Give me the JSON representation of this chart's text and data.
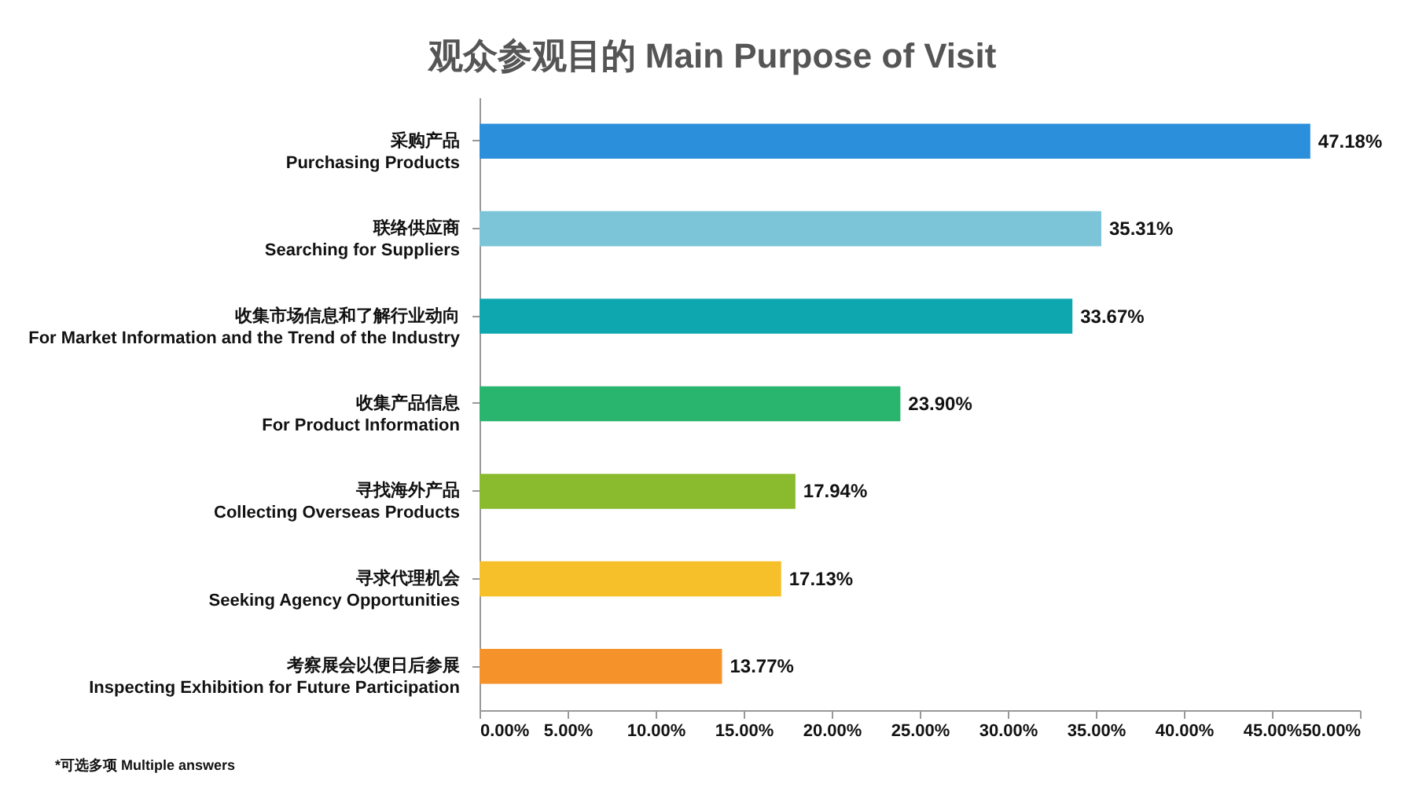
{
  "chart_data": {
    "type": "bar",
    "orientation": "horizontal",
    "title": "观众参观目的 Main Purpose of Visit",
    "categories": [
      "采购产品\nPurchasing Products",
      "联络供应商\nSearching for Suppliers",
      "收集市场信息和了解行业动向\nFor Market Information and the Trend of the Industry",
      "收集产品信息\nFor Product Information",
      "寻找海外产品\nCollecting Overseas Products",
      "寻求代理机会\nSeeking Agency Opportunities",
      "考察展会以便日后参展\nInspecting Exhibition for Future Participation"
    ],
    "values": [
      47.18,
      35.31,
      33.67,
      23.9,
      17.94,
      17.13,
      13.77
    ],
    "value_labels": [
      "47.18%",
      "35.31%",
      "33.67%",
      "23.90%",
      "17.94%",
      "17.13%",
      "13.77%"
    ],
    "colors": [
      "#2b8fdc",
      "#7cc4d8",
      "#0ea7b0",
      "#2ab56f",
      "#8aba2d",
      "#f6c02a",
      "#f5922a"
    ],
    "xlim": [
      0,
      50
    ],
    "xticks": [
      {
        "value": 0,
        "label": "0.00%"
      },
      {
        "value": 5,
        "label": "5.00%"
      },
      {
        "value": 10,
        "label": "10.00%"
      },
      {
        "value": 15,
        "label": "15.00%"
      },
      {
        "value": 20,
        "label": "20.00%"
      },
      {
        "value": 25,
        "label": "25.00%"
      },
      {
        "value": 30,
        "label": "30.00%"
      },
      {
        "value": 35,
        "label": "35.00%"
      },
      {
        "value": 40,
        "label": "40.00%"
      },
      {
        "value": 45,
        "label": "45.00%"
      },
      {
        "value": 50,
        "label": "50.00%"
      }
    ],
    "grid": false,
    "annotations": [
      "*可选多项 Multiple answers"
    ]
  }
}
